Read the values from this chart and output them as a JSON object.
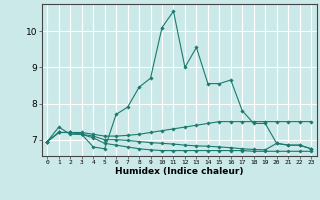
{
  "xlabel": "Humidex (Indice chaleur)",
  "background_color": "#cce9e9",
  "grid_color": "#ffffff",
  "line_color": "#1a7a6e",
  "xlim": [
    -0.5,
    23.5
  ],
  "ylim": [
    6.55,
    10.75
  ],
  "yticks": [
    7,
    8,
    9,
    10
  ],
  "xticks": [
    0,
    1,
    2,
    3,
    4,
    5,
    6,
    7,
    8,
    9,
    10,
    11,
    12,
    13,
    14,
    15,
    16,
    17,
    18,
    19,
    20,
    21,
    22,
    23
  ],
  "series": [
    {
      "x": [
        0,
        1,
        2,
        3,
        4,
        5,
        6,
        7,
        8,
        9,
        10,
        11,
        12,
        13,
        14,
        15,
        16,
        17,
        18,
        19,
        20,
        21,
        22,
        23
      ],
      "y": [
        6.95,
        7.35,
        7.15,
        7.15,
        6.8,
        6.75,
        7.7,
        7.9,
        8.45,
        8.7,
        10.1,
        10.55,
        9.0,
        9.55,
        8.55,
        8.55,
        8.65,
        7.8,
        7.45,
        7.45,
        6.9,
        6.85,
        6.85,
        6.75
      ]
    },
    {
      "x": [
        0,
        1,
        2,
        3,
        4,
        5,
        6,
        7,
        8,
        9,
        10,
        11,
        12,
        13,
        14,
        15,
        16,
        17,
        18,
        19,
        20,
        21,
        22,
        23
      ],
      "y": [
        6.95,
        7.2,
        7.2,
        7.2,
        7.15,
        7.1,
        7.1,
        7.12,
        7.15,
        7.2,
        7.25,
        7.3,
        7.35,
        7.4,
        7.45,
        7.5,
        7.5,
        7.5,
        7.5,
        7.5,
        7.5,
        7.5,
        7.5,
        7.5
      ]
    },
    {
      "x": [
        0,
        1,
        2,
        3,
        4,
        5,
        6,
        7,
        8,
        9,
        10,
        11,
        12,
        13,
        14,
        15,
        16,
        17,
        18,
        19,
        20,
        21,
        22,
        23
      ],
      "y": [
        6.95,
        7.2,
        7.2,
        7.15,
        7.05,
        6.9,
        6.85,
        6.8,
        6.75,
        6.72,
        6.7,
        6.7,
        6.7,
        6.7,
        6.7,
        6.7,
        6.7,
        6.7,
        6.68,
        6.68,
        6.68,
        6.68,
        6.68,
        6.68
      ]
    },
    {
      "x": [
        0,
        1,
        2,
        3,
        4,
        5,
        6,
        7,
        8,
        9,
        10,
        11,
        12,
        13,
        14,
        15,
        16,
        17,
        18,
        19,
        20,
        21,
        22,
        23
      ],
      "y": [
        6.95,
        7.2,
        7.2,
        7.15,
        7.1,
        7.0,
        7.0,
        6.98,
        6.95,
        6.92,
        6.9,
        6.88,
        6.85,
        6.83,
        6.82,
        6.8,
        6.78,
        6.75,
        6.73,
        6.72,
        6.9,
        6.85,
        6.85,
        6.75
      ]
    }
  ]
}
